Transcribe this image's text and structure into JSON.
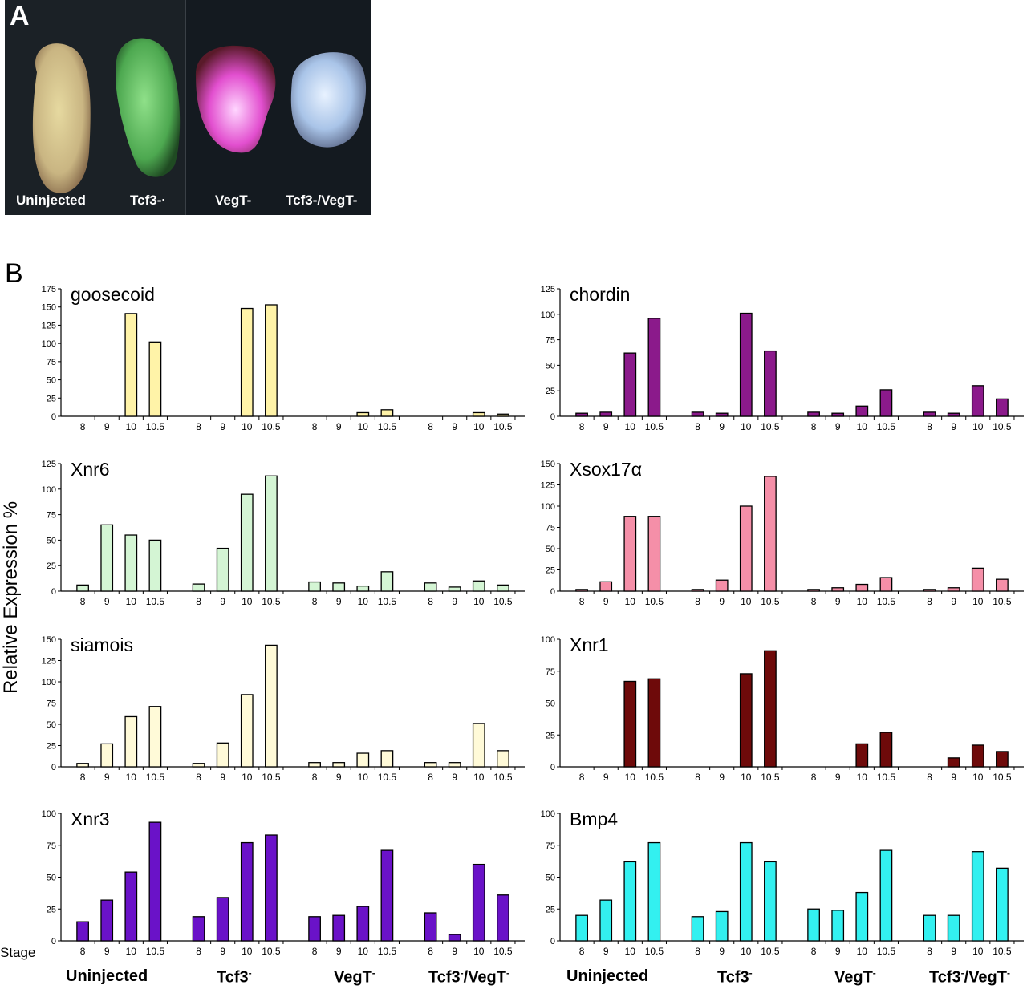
{
  "panel_a": {
    "label": "A",
    "captions": [
      "Uninjected",
      "Tcf3-·",
      "VegT-",
      "Tcf3-/VegT-"
    ]
  },
  "panel_b": {
    "label": "B",
    "y_axis_label": "Relative Expression %",
    "stage_label": "Stage",
    "group_labels": [
      {
        "main": "Uninjected",
        "sup": "",
        "tail": ""
      },
      {
        "main": "Tcf3",
        "sup": "-",
        "tail": ""
      },
      {
        "main": "VegT",
        "sup": "-",
        "tail": ""
      },
      {
        "main": "Tcf3",
        "sup": "-",
        "tail": "/VegT",
        "sup2": "-"
      }
    ]
  },
  "chart_data": [
    {
      "type": "bar",
      "title": "goosecoid",
      "ylim": [
        0,
        175
      ],
      "yticks": [
        0,
        25,
        50,
        75,
        100,
        125,
        150,
        175
      ],
      "color": "#fff3a8",
      "groups": [
        "Uninjected",
        "Tcf3-",
        "VegT-",
        "Tcf3-/VegT-"
      ],
      "categories": [
        "8",
        "9",
        "10",
        "10.5"
      ],
      "values": [
        [
          0,
          0,
          141,
          102
        ],
        [
          0,
          0,
          148,
          153
        ],
        [
          0,
          0,
          5,
          9
        ],
        [
          0,
          0,
          5,
          3
        ]
      ]
    },
    {
      "type": "bar",
      "title": "chordin",
      "ylim": [
        0,
        125
      ],
      "yticks": [
        0,
        25,
        50,
        75,
        100,
        125
      ],
      "color": "#8b1a8b",
      "groups": [
        "Uninjected",
        "Tcf3-",
        "VegT-",
        "Tcf3-/VegT-"
      ],
      "categories": [
        "8",
        "9",
        "10",
        "10.5"
      ],
      "values": [
        [
          3,
          4,
          62,
          96
        ],
        [
          4,
          3,
          101,
          64
        ],
        [
          4,
          3,
          10,
          26
        ],
        [
          4,
          3,
          30,
          17
        ]
      ]
    },
    {
      "type": "bar",
      "title": "Xnr6",
      "ylim": [
        0,
        125
      ],
      "yticks": [
        0,
        25,
        50,
        75,
        100,
        125
      ],
      "color": "#d4f5d4",
      "groups": [
        "Uninjected",
        "Tcf3-",
        "VegT-",
        "Tcf3-/VegT-"
      ],
      "categories": [
        "8",
        "9",
        "10",
        "10.5"
      ],
      "values": [
        [
          6,
          65,
          55,
          50
        ],
        [
          7,
          42,
          95,
          113
        ],
        [
          9,
          8,
          5,
          19
        ],
        [
          8,
          4,
          10,
          6
        ]
      ]
    },
    {
      "type": "bar",
      "title": "Xsox17α",
      "ylim": [
        0,
        150
      ],
      "yticks": [
        0,
        25,
        50,
        75,
        100,
        125,
        150
      ],
      "color": "#f58fa8",
      "groups": [
        "Uninjected",
        "Tcf3-",
        "VegT-",
        "Tcf3-/VegT-"
      ],
      "categories": [
        "8",
        "9",
        "10",
        "10.5"
      ],
      "values": [
        [
          2,
          11,
          88,
          88
        ],
        [
          2,
          13,
          100,
          135
        ],
        [
          2,
          4,
          8,
          16
        ],
        [
          2,
          4,
          27,
          14
        ]
      ]
    },
    {
      "type": "bar",
      "title": "siamois",
      "ylim": [
        0,
        150
      ],
      "yticks": [
        0,
        25,
        50,
        75,
        100,
        125,
        150
      ],
      "color": "#fffad8",
      "groups": [
        "Uninjected",
        "Tcf3-",
        "VegT-",
        "Tcf3-/VegT-"
      ],
      "categories": [
        "8",
        "9",
        "10",
        "10.5"
      ],
      "values": [
        [
          4,
          27,
          59,
          71
        ],
        [
          4,
          28,
          85,
          143
        ],
        [
          5,
          5,
          16,
          19
        ],
        [
          5,
          5,
          51,
          19
        ]
      ]
    },
    {
      "type": "bar",
      "title": "Xnr1",
      "ylim": [
        0,
        100
      ],
      "yticks": [
        0,
        25,
        50,
        75,
        100
      ],
      "color": "#6e0a0a",
      "groups": [
        "Uninjected",
        "Tcf3-",
        "VegT-",
        "Tcf3-/VegT-"
      ],
      "categories": [
        "8",
        "9",
        "10",
        "10.5"
      ],
      "values": [
        [
          0,
          0,
          67,
          69
        ],
        [
          0,
          0,
          73,
          91
        ],
        [
          0,
          0,
          18,
          27
        ],
        [
          0,
          7,
          17,
          12
        ]
      ]
    },
    {
      "type": "bar",
      "title": "Xnr3",
      "ylim": [
        0,
        100
      ],
      "yticks": [
        0,
        25,
        50,
        75,
        100
      ],
      "color": "#6a12c8",
      "groups": [
        "Uninjected",
        "Tcf3-",
        "VegT-",
        "Tcf3-/VegT-"
      ],
      "categories": [
        "8",
        "9",
        "10",
        "10.5"
      ],
      "values": [
        [
          15,
          32,
          54,
          93
        ],
        [
          19,
          34,
          77,
          83
        ],
        [
          19,
          20,
          27,
          71
        ],
        [
          22,
          5,
          60,
          36
        ]
      ]
    },
    {
      "type": "bar",
      "title": "Bmp4",
      "ylim": [
        0,
        100
      ],
      "yticks": [
        0,
        25,
        50,
        75,
        100
      ],
      "color": "#33f0f0",
      "groups": [
        "Uninjected",
        "Tcf3-",
        "VegT-",
        "Tcf3-/VegT-"
      ],
      "categories": [
        "8",
        "9",
        "10",
        "10.5"
      ],
      "values": [
        [
          20,
          32,
          62,
          77
        ],
        [
          19,
          23,
          77,
          62
        ],
        [
          25,
          24,
          38,
          71
        ],
        [
          20,
          20,
          70,
          57
        ]
      ]
    }
  ]
}
